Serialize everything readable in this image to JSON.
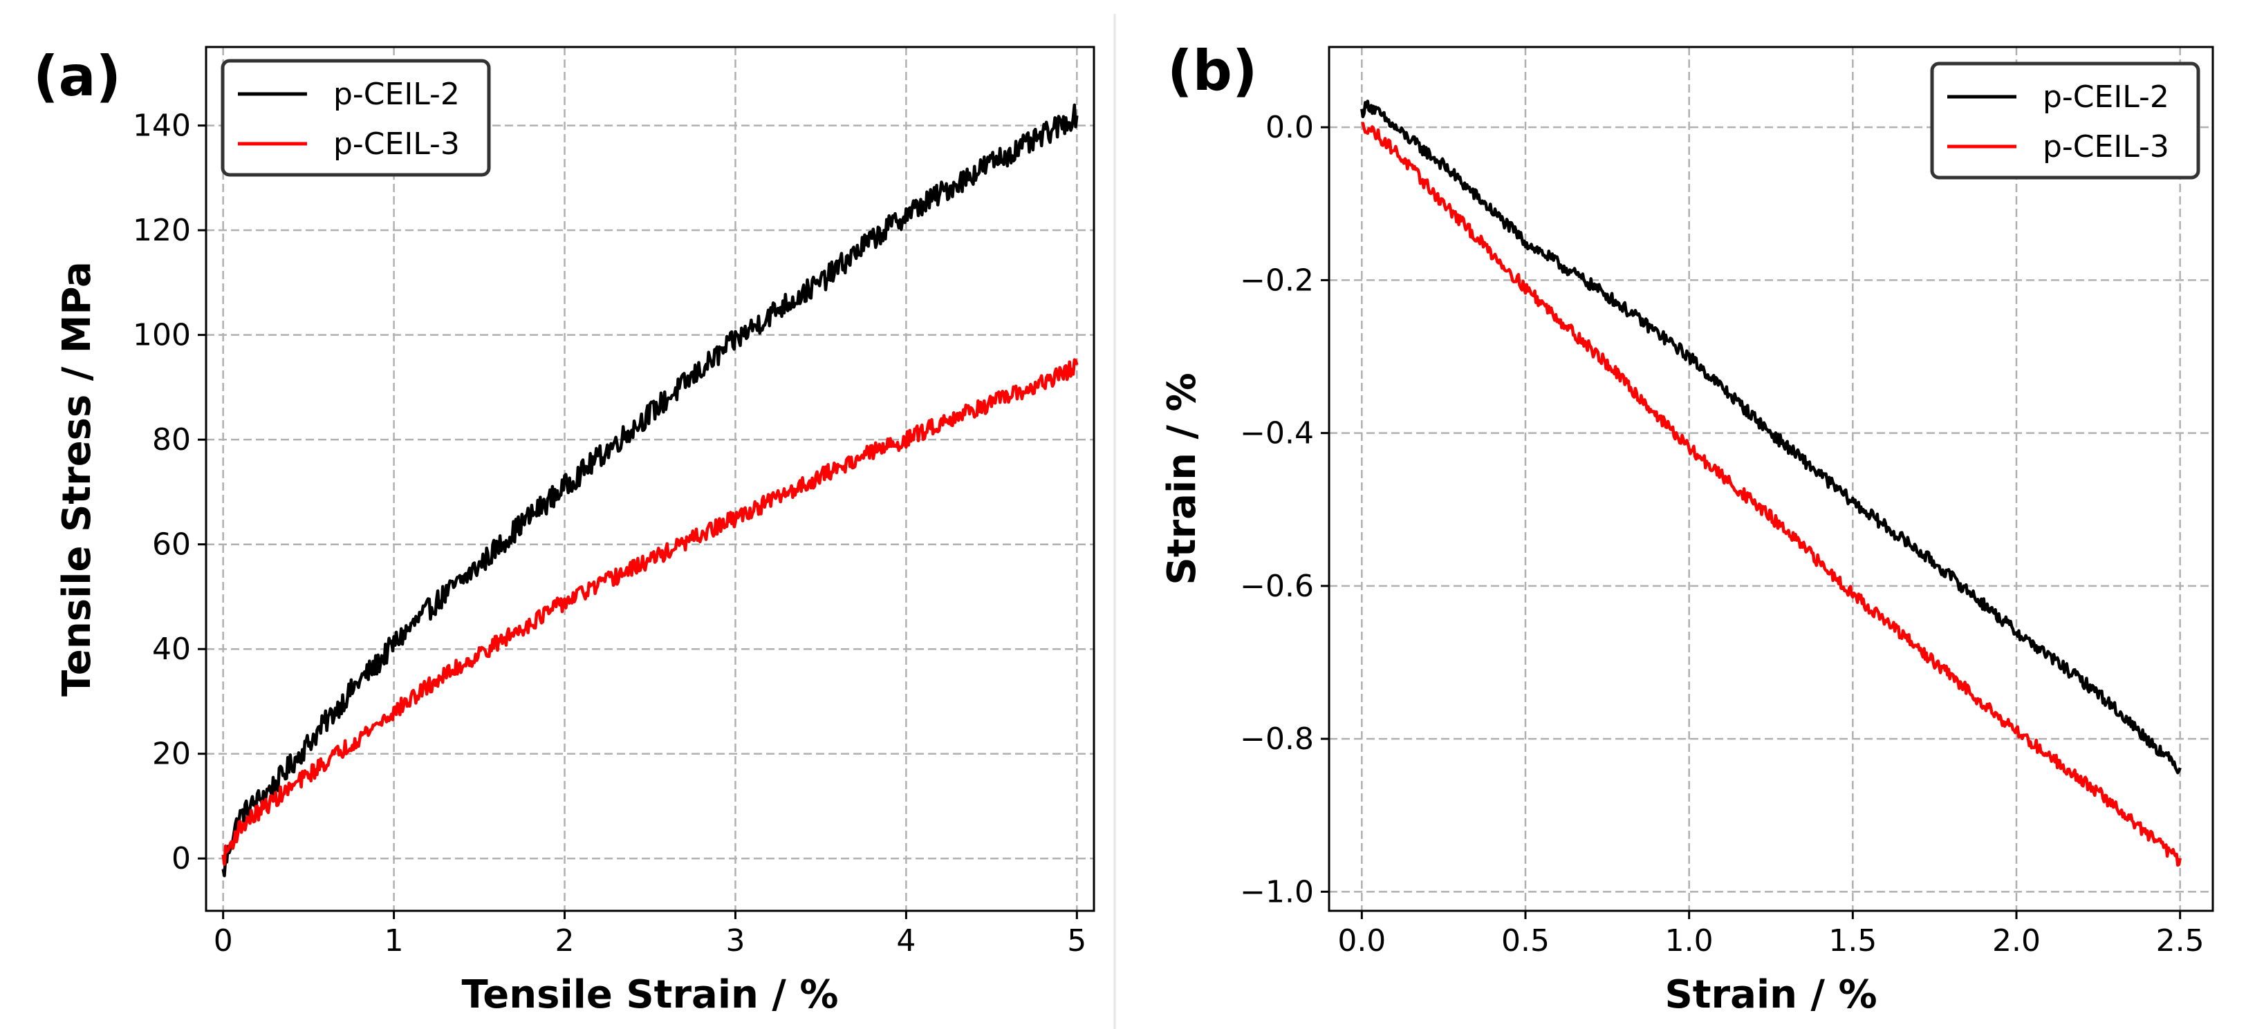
{
  "chart_data": [
    {
      "type": "line",
      "panel_label": "(a)",
      "xlabel": "Tensile Strain / %",
      "ylabel": "Tensile Stress / MPa",
      "xlim": [
        -0.1,
        5.1
      ],
      "ylim": [
        -10,
        155
      ],
      "xticks": [
        0,
        1,
        2,
        3,
        4,
        5
      ],
      "xtick_labels": [
        "0",
        "1",
        "2",
        "3",
        "4",
        "5"
      ],
      "yticks": [
        0,
        20,
        40,
        60,
        80,
        100,
        120,
        140
      ],
      "ytick_labels": [
        "0",
        "20",
        "40",
        "60",
        "80",
        "100",
        "120",
        "140"
      ],
      "grid": true,
      "legend_position": "top-left",
      "series": [
        {
          "name": "p-CEIL-2",
          "color": "#000000",
          "x": [
            0,
            0.05,
            0.1,
            0.2,
            0.3,
            0.4,
            0.5,
            0.6,
            0.7,
            0.8,
            0.9,
            1.0,
            1.25,
            1.5,
            1.75,
            2.0,
            2.25,
            2.5,
            2.75,
            3.0,
            3.25,
            3.5,
            3.75,
            4.0,
            4.25,
            4.5,
            4.75,
            5.0
          ],
          "y": [
            -3,
            4,
            8,
            11,
            14,
            18,
            22,
            26,
            30,
            34,
            37,
            41,
            49,
            56,
            64,
            71,
            78,
            85,
            92,
            99,
            105,
            110,
            117,
            123,
            128,
            133,
            137,
            142
          ],
          "noise": 2.2
        },
        {
          "name": "p-CEIL-3",
          "color": "#ff0000",
          "x": [
            0,
            0.1,
            0.25,
            0.5,
            0.75,
            1.0,
            1.25,
            1.5,
            1.75,
            2.0,
            2.25,
            2.5,
            2.75,
            3.0,
            3.25,
            3.5,
            3.75,
            4.0,
            4.25,
            4.5,
            4.75,
            5.0
          ],
          "y": [
            0,
            6,
            10,
            16,
            22,
            28,
            34,
            39,
            44,
            49,
            53,
            57,
            61,
            65,
            69,
            73,
            77,
            80,
            84,
            87,
            90,
            94
          ],
          "noise": 1.6
        }
      ]
    },
    {
      "type": "line",
      "panel_label": "(b)",
      "xlabel": "Strain / %",
      "ylabel": "Strain / %",
      "xlim": [
        -0.1,
        2.6
      ],
      "ylim": [
        -1.025,
        0.105
      ],
      "xticks": [
        0.0,
        0.5,
        1.0,
        1.5,
        2.0,
        2.5
      ],
      "xtick_labels": [
        "0.0",
        "0.5",
        "1.0",
        "1.5",
        "2.0",
        "2.5"
      ],
      "yticks": [
        0.0,
        -0.2,
        -0.4,
        -0.6,
        -0.8,
        -1.0
      ],
      "ytick_labels": [
        "0.0",
        "−0.2",
        "−0.4",
        "−0.6",
        "−0.8",
        "−1.0"
      ],
      "grid": true,
      "legend_position": "top-right",
      "series": [
        {
          "name": "p-CEIL-2",
          "color": "#000000",
          "x": [
            0,
            0.02,
            0.1,
            0.25,
            0.5,
            0.75,
            1.0,
            1.25,
            1.5,
            1.75,
            2.0,
            2.25,
            2.5
          ],
          "y": [
            0.02,
            0.03,
            0.0,
            -0.05,
            -0.15,
            -0.22,
            -0.3,
            -0.4,
            -0.49,
            -0.57,
            -0.66,
            -0.74,
            -0.84
          ],
          "noise": 0.008
        },
        {
          "name": "p-CEIL-3",
          "color": "#ff0000",
          "x": [
            0,
            0.02,
            0.1,
            0.25,
            0.5,
            0.75,
            1.0,
            1.25,
            1.5,
            1.75,
            2.0,
            2.25,
            2.5
          ],
          "y": [
            0.0,
            0.0,
            -0.03,
            -0.1,
            -0.21,
            -0.31,
            -0.42,
            -0.51,
            -0.61,
            -0.7,
            -0.79,
            -0.87,
            -0.96
          ],
          "noise": 0.008
        }
      ]
    }
  ]
}
